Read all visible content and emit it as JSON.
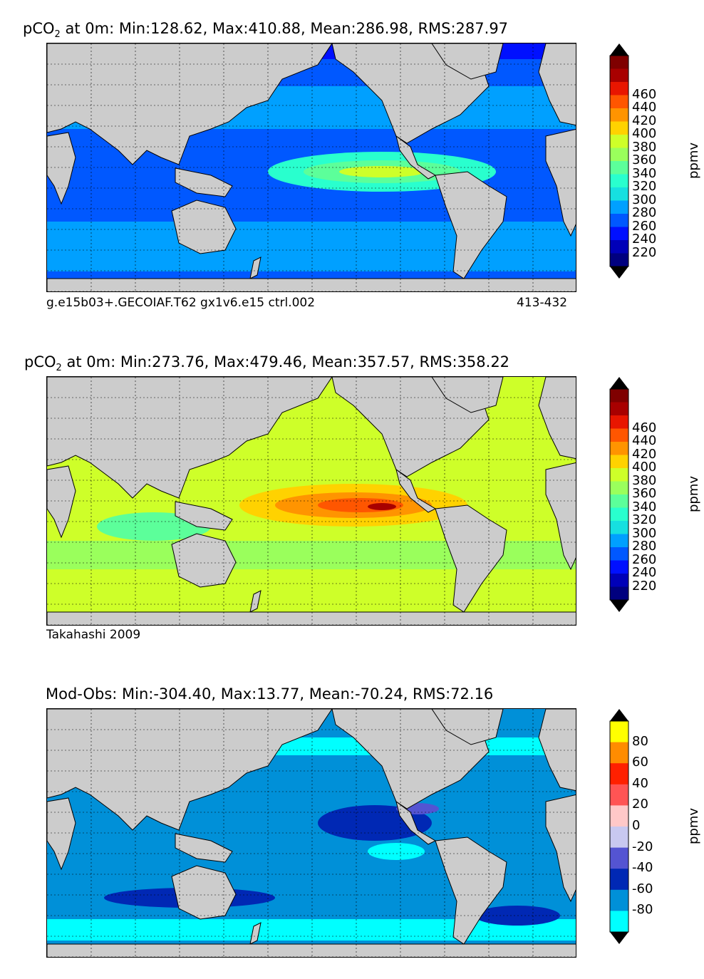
{
  "panels": [
    {
      "title_prefix": "pCO",
      "title_sub": "2",
      "title_rest": " at 0m: Min:128.62, Max:410.88, Mean:286.98, RMS:287.97",
      "footer_left": "g.e15b03+.GECOIAF.T62 gx1v6.e15 ctrl.002",
      "footer_right": "413-432"
    },
    {
      "title_prefix": "pCO",
      "title_sub": "2",
      "title_rest": " at 0m: Min:273.76, Max:479.46, Mean:357.57, RMS:358.22",
      "footer_left": "Takahashi 2009",
      "footer_right": ""
    },
    {
      "title_prefix": "Mod-Obs: Min:-304.40, Max:13.77, Mean:-70.24, RMS:72.16",
      "title_sub": "",
      "title_rest": "",
      "footer_left": "",
      "footer_right": ""
    }
  ],
  "colorbars": {
    "pco2": {
      "unit": "ppmv",
      "colors": [
        "#00007f",
        "#0000b8",
        "#0010ff",
        "#0058ff",
        "#00a0ff",
        "#16e0e0",
        "#29ffce",
        "#5cff9a",
        "#9aff5c",
        "#ceff29",
        "#ffd200",
        "#ff9400",
        "#ff5600",
        "#e81600",
        "#a80000",
        "#7f0000"
      ],
      "ticks": [
        "220",
        "240",
        "260",
        "280",
        "300",
        "320",
        "340",
        "360",
        "380",
        "400",
        "420",
        "440",
        "460"
      ]
    },
    "diff": {
      "unit": "ppmv",
      "colors": [
        "#00ffff",
        "#0090d8",
        "#0028b4",
        "#5454d2",
        "#c8c8f0",
        "#ffc8c8",
        "#ff5454",
        "#ff2000",
        "#ff8c00",
        "#ffff00"
      ],
      "ticks": [
        "-80",
        "-60",
        "-40",
        "-20",
        "0",
        "20",
        "40",
        "60",
        "80"
      ]
    }
  },
  "colors": {
    "land": "#cccccc",
    "nodata": "#ffffff",
    "grid": "#000000"
  },
  "chart_data": [
    {
      "type": "heatmap",
      "title": "pCO2 at 0m: Min:128.62, Max:410.88, Mean:286.98, RMS:287.97",
      "colorbar_label": "ppmv",
      "colorbar_ticks": [
        220,
        240,
        260,
        280,
        300,
        320,
        340,
        360,
        380,
        400,
        420,
        440,
        460
      ],
      "stats": {
        "min": 128.62,
        "max": 410.88,
        "mean": 286.98,
        "rms": 287.97
      },
      "legend": "right"
    },
    {
      "type": "heatmap",
      "title": "pCO2 at 0m: Min:273.76, Max:479.46, Mean:357.57, RMS:358.22",
      "colorbar_label": "ppmv",
      "colorbar_ticks": [
        220,
        240,
        260,
        280,
        300,
        320,
        340,
        360,
        380,
        400,
        420,
        440,
        460
      ],
      "stats": {
        "min": 273.76,
        "max": 479.46,
        "mean": 357.57,
        "rms": 358.22
      },
      "legend": "right"
    },
    {
      "type": "heatmap",
      "title": "Mod-Obs: Min:-304.40, Max:13.77, Mean:-70.24, RMS:72.16",
      "colorbar_label": "ppmv",
      "colorbar_ticks": [
        -80,
        -60,
        -40,
        -20,
        0,
        20,
        40,
        60,
        80
      ],
      "stats": {
        "min": -304.4,
        "max": 13.77,
        "mean": -70.24,
        "rms": 72.16
      },
      "legend": "right"
    }
  ]
}
